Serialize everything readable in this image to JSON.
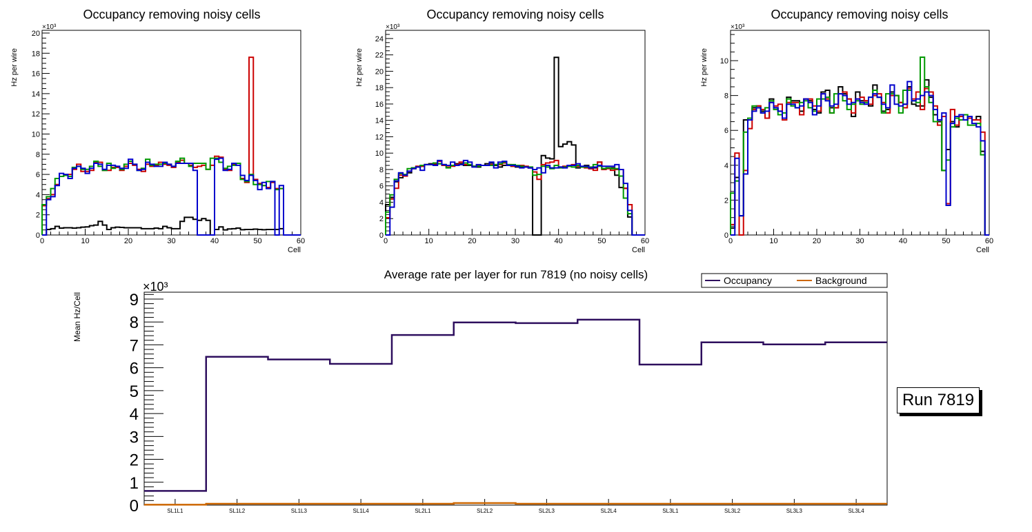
{
  "chart_data": [
    {
      "type": "line",
      "subtype": "step-histogram",
      "title": "Occupancy removing noisy cells",
      "xlabel": "Cell",
      "ylabel": "Hz per wire",
      "yexponent": "×10³",
      "xlim": [
        0,
        60
      ],
      "ylim": [
        0,
        20.27
      ],
      "xticks": [
        "0",
        "10",
        "20",
        "30",
        "40",
        "50",
        "60"
      ],
      "yticks": [
        "0",
        "2",
        "4",
        "6",
        "8",
        "10",
        "12",
        "14",
        "16",
        "18",
        "20"
      ],
      "ytick_values": [
        0,
        2,
        4,
        6,
        8,
        10,
        12,
        14,
        16,
        18,
        20
      ],
      "series": [
        {
          "name": "black",
          "color": "#000000",
          "values": [
            0,
            0.55,
            0.62,
            0.85,
            0.68,
            0.72,
            0.72,
            0.68,
            0.72,
            0.78,
            0.8,
            0.92,
            0.98,
            1.35,
            0.98,
            0.55,
            0.72,
            0.78,
            0.75,
            0.72,
            0.72,
            0.72,
            0.72,
            0.62,
            0.62,
            0.62,
            0.68,
            0.62,
            0.85,
            0.72,
            0.62,
            0.62,
            1.35,
            1.75,
            1.75,
            1.55,
            1.45,
            1.62,
            1.45,
            0,
            0.55,
            0.8,
            0.5,
            0.6,
            0.62,
            0.68,
            0.52,
            0.55,
            0.55,
            0.58,
            0.55,
            0.52,
            0.55,
            0.55,
            0.55,
            0.62,
            0,
            0,
            0,
            0
          ]
        },
        {
          "name": "red",
          "color": "#cc0000",
          "values": [
            2.9,
            3.6,
            4.0,
            5.0,
            5.8,
            5.9,
            6.0,
            6.5,
            7.0,
            6.3,
            6.3,
            6.4,
            7.2,
            7.2,
            6.4,
            6.4,
            6.7,
            6.7,
            6.4,
            6.8,
            7.1,
            6.9,
            6.5,
            6.3,
            7.0,
            6.8,
            6.9,
            7.2,
            7.0,
            6.9,
            6.7,
            7.2,
            7.4,
            7.1,
            6.9,
            6.7,
            6.8,
            6.9,
            6.5,
            6.9,
            7.8,
            7.7,
            6.5,
            6.4,
            7.0,
            7.1,
            5.6,
            5.2,
            17.6,
            5.5,
            5.1,
            4.9,
            4.7,
            5.2,
            4.6,
            4.6,
            0,
            0,
            0,
            0
          ]
        },
        {
          "name": "green",
          "color": "#009900",
          "values": [
            3.0,
            3.8,
            4.6,
            5.6,
            5.8,
            5.9,
            5.8,
            6.7,
            6.8,
            6.5,
            6.5,
            6.8,
            7.3,
            6.8,
            6.4,
            7.1,
            6.6,
            6.8,
            6.5,
            7.0,
            7.3,
            7.0,
            6.4,
            6.6,
            7.5,
            6.9,
            7.0,
            7.0,
            7.1,
            7.0,
            6.8,
            7.3,
            7.6,
            7.1,
            6.8,
            7.1,
            7.1,
            7.1,
            6.5,
            7.6,
            7.6,
            7.2,
            6.6,
            6.8,
            6.9,
            7.1,
            5.5,
            5.3,
            6.0,
            5.0,
            5.0,
            4.9,
            5.3,
            5.3,
            4.5,
            4.6,
            0,
            0,
            0,
            0
          ]
        },
        {
          "name": "blue",
          "color": "#0000cc",
          "values": [
            0,
            3.5,
            3.8,
            4.9,
            6.1,
            6.0,
            5.6,
            6.6,
            6.8,
            6.6,
            6.1,
            6.6,
            7.1,
            7.0,
            6.5,
            6.9,
            6.9,
            6.8,
            6.6,
            6.6,
            7.5,
            7.0,
            6.4,
            6.5,
            7.2,
            7.0,
            6.8,
            6.8,
            7.2,
            7.0,
            6.8,
            7.1,
            7.1,
            7.1,
            7.1,
            6.4,
            0,
            0,
            0,
            0,
            7.5,
            7.6,
            6.4,
            6.5,
            7.1,
            6.9,
            5.9,
            5.4,
            5.9,
            5.4,
            4.5,
            5.2,
            4.6,
            5.3,
            0,
            4.9,
            0,
            0,
            0,
            0
          ]
        }
      ]
    },
    {
      "type": "line",
      "subtype": "step-histogram",
      "title": "Occupancy removing noisy cells",
      "xlabel": "Cell",
      "ylabel": "Hz per wire",
      "yexponent": "×10³",
      "xlim": [
        0,
        60
      ],
      "ylim": [
        0,
        25.0
      ],
      "xticks": [
        "0",
        "10",
        "20",
        "30",
        "40",
        "50",
        "60"
      ],
      "yticks": [
        "0",
        "2",
        "4",
        "6",
        "8",
        "10",
        "12",
        "14",
        "16",
        "18",
        "20",
        "22",
        "24"
      ],
      "ytick_values": [
        0,
        2,
        4,
        6,
        8,
        10,
        12,
        14,
        16,
        18,
        20,
        22,
        24
      ],
      "series": [
        {
          "name": "black",
          "color": "#000000",
          "values": [
            3.7,
            4.6,
            6.5,
            7.0,
            7.2,
            7.6,
            8.2,
            8.3,
            8.4,
            8.6,
            8.7,
            8.6,
            8.7,
            8.6,
            8.5,
            8.5,
            8.7,
            8.7,
            8.5,
            8.5,
            8.4,
            8.3,
            8.5,
            8.7,
            8.8,
            8.5,
            8.3,
            8.5,
            8.5,
            8.4,
            8.3,
            8.3,
            8.3,
            8.2,
            0,
            0,
            9.7,
            9.4,
            9.3,
            21.7,
            10.8,
            11.1,
            11.4,
            11.0,
            8.2,
            8.3,
            8.5,
            8.1,
            8.2,
            8.9,
            8.1,
            8.2,
            8.2,
            7.3,
            5.8,
            5.7,
            2.2,
            0,
            0,
            0
          ]
        },
        {
          "name": "red",
          "color": "#cc0000",
          "values": [
            2.1,
            4.4,
            5.7,
            7.3,
            7.2,
            7.8,
            8.1,
            8.4,
            8.4,
            8.6,
            8.6,
            8.7,
            9.0,
            8.5,
            8.3,
            8.4,
            8.6,
            8.9,
            8.6,
            8.6,
            8.4,
            8.5,
            8.5,
            8.5,
            8.6,
            8.6,
            8.6,
            8.8,
            8.6,
            8.4,
            8.4,
            8.5,
            8.4,
            8.2,
            7.7,
            6.8,
            8.6,
            8.8,
            8.9,
            9.1,
            8.3,
            8.4,
            8.4,
            8.6,
            8.4,
            8.3,
            8.2,
            8.1,
            7.9,
            8.9,
            8.0,
            8.1,
            7.9,
            8.0,
            8.0,
            5.7,
            3.7,
            0,
            0,
            0
          ]
        },
        {
          "name": "green",
          "color": "#009900",
          "values": [
            2.8,
            4.9,
            6.8,
            7.5,
            7.4,
            8.1,
            8.2,
            8.3,
            8.5,
            8.6,
            8.6,
            8.8,
            8.7,
            8.6,
            8.2,
            8.5,
            8.5,
            8.6,
            8.8,
            8.6,
            8.4,
            8.4,
            8.5,
            8.5,
            8.5,
            8.6,
            8.7,
            8.9,
            8.6,
            8.6,
            8.5,
            8.4,
            8.3,
            8.3,
            7.3,
            7.4,
            8.4,
            8.3,
            8.1,
            8.5,
            8.2,
            8.3,
            8.4,
            8.3,
            8.5,
            8.3,
            8.3,
            8.3,
            8.6,
            8.4,
            8.1,
            8.2,
            8.1,
            8.1,
            7.2,
            4.5,
            2.6,
            0,
            0,
            0
          ]
        },
        {
          "name": "blue",
          "color": "#0000cc",
          "values": [
            0,
            3.4,
            6.6,
            7.6,
            7.3,
            7.8,
            8.1,
            8.3,
            7.9,
            8.6,
            8.6,
            8.5,
            9.1,
            8.6,
            8.5,
            8.9,
            8.5,
            8.6,
            9.1,
            8.9,
            8.3,
            8.6,
            8.5,
            8.5,
            8.9,
            8.2,
            8.9,
            9.0,
            8.5,
            8.5,
            8.4,
            8.2,
            8.3,
            8.2,
            8.0,
            8.2,
            7.6,
            8.5,
            8.2,
            8.2,
            8.3,
            8.2,
            8.5,
            8.5,
            8.7,
            8.4,
            8.4,
            8.2,
            8.3,
            8.5,
            8.4,
            8.4,
            8.4,
            8.6,
            8.0,
            6.3,
            3.0,
            0,
            0,
            0
          ]
        }
      ]
    },
    {
      "type": "line",
      "subtype": "step-histogram",
      "title": "Occupancy removing noisy cells",
      "xlabel": "Cell",
      "ylabel": "Hz per wire",
      "yexponent": "×10³",
      "xlim": [
        0,
        60
      ],
      "ylim": [
        0,
        11.74
      ],
      "xticks": [
        "0",
        "10",
        "20",
        "30",
        "40",
        "50",
        "60"
      ],
      "yticks": [
        "0",
        "2",
        "4",
        "6",
        "8",
        "10"
      ],
      "ytick_values": [
        0,
        2,
        4,
        6,
        8,
        10
      ],
      "series": [
        {
          "name": "black",
          "color": "#000000",
          "values": [
            0.4,
            3.3,
            1.1,
            6.6,
            6.6,
            7.3,
            7.4,
            7.1,
            6.7,
            7.8,
            7.3,
            7.1,
            6.6,
            7.9,
            7.7,
            7.7,
            7.1,
            7.8,
            7.7,
            7.2,
            7.0,
            8.2,
            8.3,
            7.3,
            7.3,
            8.5,
            8.1,
            7.8,
            6.8,
            8.2,
            7.7,
            7.7,
            7.4,
            8.6,
            7.9,
            7.1,
            7.2,
            8.2,
            8.0,
            7.6,
            7.5,
            8.5,
            7.5,
            7.4,
            7.4,
            8.9,
            7.9,
            6.9,
            6.5,
            3.7,
            4.9,
            6.5,
            6.2,
            6.6,
            6.6,
            6.8,
            6.6,
            6.8,
            4.8,
            0
          ]
        },
        {
          "name": "red",
          "color": "#cc0000",
          "values": [
            0.6,
            4.7,
            0,
            3.7,
            6.1,
            7.2,
            7.4,
            7.2,
            6.7,
            7.6,
            7.4,
            7.5,
            6.6,
            7.6,
            7.6,
            7.6,
            6.9,
            7.8,
            7.8,
            7.4,
            7.1,
            8.1,
            7.8,
            7.0,
            7.3,
            8.1,
            8.2,
            7.8,
            7.0,
            7.8,
            7.9,
            7.7,
            7.5,
            8.0,
            8.1,
            7.6,
            7.0,
            8.0,
            8.0,
            7.6,
            7.3,
            8.4,
            7.8,
            8.2,
            7.2,
            8.4,
            8.2,
            7.4,
            6.3,
            6.8,
            1.8,
            7.2,
            6.3,
            6.8,
            6.6,
            6.7,
            6.6,
            6.6,
            5.9,
            0
          ]
        },
        {
          "name": "green",
          "color": "#009900",
          "values": [
            2.4,
            3.1,
            1.1,
            5.9,
            6.7,
            7.4,
            7.3,
            7.0,
            7.3,
            7.7,
            7.2,
            6.9,
            7.0,
            7.8,
            7.4,
            7.3,
            7.6,
            7.7,
            7.3,
            7.1,
            7.8,
            7.8,
            7.9,
            7.0,
            8.1,
            8.1,
            7.7,
            7.2,
            7.5,
            7.7,
            7.5,
            7.6,
            7.9,
            8.3,
            7.9,
            7.0,
            8.1,
            8.1,
            8.0,
            7.0,
            8.3,
            8.3,
            7.7,
            7.6,
            10.2,
            8.5,
            7.6,
            6.5,
            6.6,
            3.7,
            4.3,
            6.2,
            6.7,
            6.6,
            6.9,
            6.3,
            6.3,
            6.4,
            4.6,
            0
          ]
        },
        {
          "name": "blue",
          "color": "#0000cc",
          "values": [
            0,
            4.4,
            1.1,
            3.5,
            6.6,
            7.1,
            7.3,
            7.0,
            7.1,
            7.6,
            7.3,
            7.1,
            6.7,
            7.5,
            7.5,
            7.3,
            7.4,
            7.8,
            7.6,
            6.9,
            7.4,
            8.1,
            7.7,
            7.4,
            7.5,
            8.1,
            8.0,
            7.5,
            7.6,
            7.8,
            7.6,
            7.5,
            7.9,
            8.1,
            7.9,
            7.5,
            7.3,
            8.6,
            7.5,
            7.4,
            7.5,
            8.8,
            7.7,
            7.8,
            8.0,
            8.2,
            8.0,
            7.2,
            6.6,
            7.0,
            1.7,
            6.4,
            6.8,
            6.9,
            6.6,
            6.8,
            6.4,
            6.2,
            5.4,
            0
          ]
        }
      ]
    },
    {
      "type": "line",
      "subtype": "step-histogram",
      "title": "Average rate per layer for run 7819 (no noisy cells)",
      "xlabel": "",
      "ylabel": "Mean Hz/Cell",
      "yexponent": "×10³",
      "categories": [
        "SL1L1",
        "SL1L2",
        "SL1L3",
        "SL1L4",
        "SL2L1",
        "SL2L2",
        "SL2L3",
        "SL2L4",
        "SL3L1",
        "SL3L2",
        "SL3L3",
        "SL3L4"
      ],
      "ylim": [
        0,
        9.3
      ],
      "yticks": [
        "0",
        "1",
        "2",
        "3",
        "4",
        "5",
        "6",
        "7",
        "8",
        "9"
      ],
      "ytick_values": [
        0,
        1,
        2,
        3,
        4,
        5,
        6,
        7,
        8,
        9
      ],
      "legend": {
        "placement": "top-right",
        "entries": [
          "Occupancy",
          "Background"
        ]
      },
      "series": [
        {
          "name": "Occupancy",
          "color": "#2e0f5e",
          "values": [
            0.62,
            6.48,
            6.36,
            6.17,
            7.43,
            7.98,
            7.95,
            8.1,
            6.14,
            7.11,
            7.02,
            7.11
          ]
        },
        {
          "name": "Background",
          "color": "#cc6600",
          "values": [
            0.02,
            0.06,
            0.06,
            0.06,
            0.06,
            0.09,
            0.06,
            0.06,
            0.06,
            0.06,
            0.06,
            0.06
          ]
        }
      ]
    }
  ],
  "annotation": {
    "run_label": "Run 7819"
  }
}
